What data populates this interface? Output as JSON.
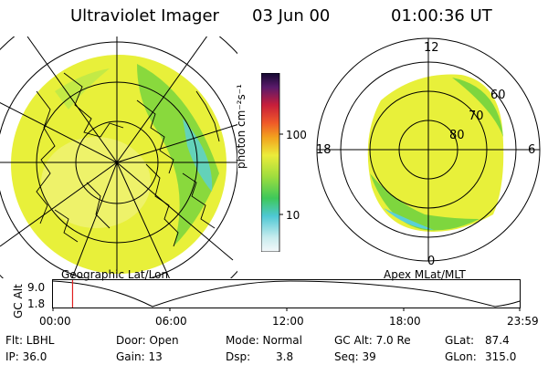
{
  "header": {
    "instrument": "Ultraviolet Imager",
    "date": "03 Jun 00",
    "time": "01:00:36 UT"
  },
  "left_panel": {
    "label": "Geographic Lat/Lon"
  },
  "right_panel": {
    "label": "Apex MLat/MLT",
    "mlt_labels": [
      "12",
      "18",
      "6",
      "0"
    ],
    "lat_labels": [
      "60",
      "70",
      "80"
    ]
  },
  "colorbar": {
    "unit": "photon cm⁻²s⁻¹",
    "ticks": [
      "100",
      "10"
    ]
  },
  "altitude_plot": {
    "ylabel": "GC Alt",
    "yticks": [
      "9.0",
      "1.8"
    ],
    "xticks": [
      "00:00",
      "06:00",
      "12:00",
      "18:00",
      "23:59"
    ],
    "current_time_fraction": 0.042
  },
  "status": {
    "flt": "Flt: LBHL",
    "ip": "IP: 36.0",
    "door": "Door: Open",
    "gain": "Gain: 13",
    "mode": "Mode: Normal",
    "dsp_label": "Dsp:",
    "dsp_value": "3.8",
    "gcalt": "GC Alt: 7.0 Re",
    "seq": "Seq: 39",
    "glat_label": "GLat:",
    "glat_value": "87.4",
    "glon_label": "GLon:",
    "glon_value": "315.0"
  },
  "colors": {
    "yellow": "#e8f03a",
    "green": "#7ed63e",
    "cyan": "#5ad0d8"
  }
}
